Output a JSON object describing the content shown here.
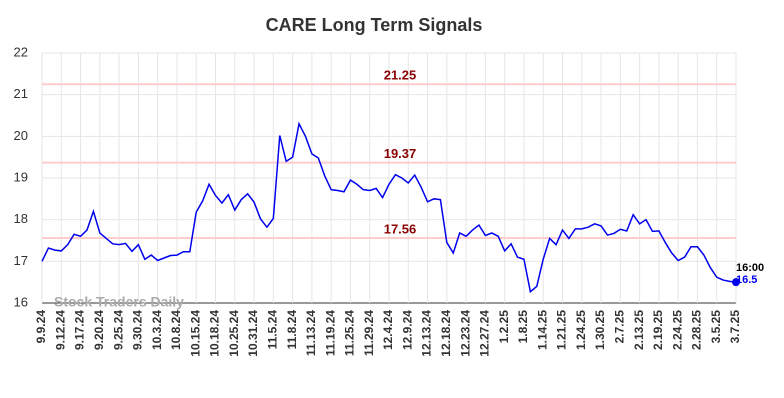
{
  "chart_data": {
    "type": "line",
    "title": "CARE Long Term Signals",
    "watermark": "Stock Traders Daily",
    "time_label": "16:00",
    "categories": [
      "9.9.24",
      null,
      null,
      "9.12.24",
      null,
      null,
      "9.17.24",
      null,
      null,
      "9.20.24",
      null,
      null,
      "9.25.24",
      null,
      null,
      "9.30.24",
      null,
      null,
      "10.3.24",
      null,
      null,
      "10.8.24",
      null,
      null,
      "10.15.24",
      null,
      null,
      "10.18.24",
      null,
      null,
      "10.25.24",
      null,
      null,
      "10.31.24",
      null,
      null,
      "11.5.24",
      null,
      null,
      "11.8.24",
      null,
      null,
      "11.13.24",
      null,
      null,
      "11.19.24",
      null,
      null,
      "11.25.24",
      null,
      null,
      "11.29.24",
      null,
      null,
      "12.4.24",
      null,
      null,
      "12.9.24",
      null,
      null,
      "12.13.24",
      null,
      null,
      "12.18.24",
      null,
      null,
      "12.23.24",
      null,
      null,
      "12.27.24",
      null,
      null,
      "1.2.25",
      null,
      null,
      "1.8.25",
      null,
      null,
      "1.14.25",
      null,
      null,
      "1.21.25",
      null,
      null,
      "1.24.25",
      null,
      null,
      "1.30.25",
      null,
      null,
      "2.7.25",
      null,
      null,
      "2.13.25",
      null,
      null,
      "2.19.25",
      null,
      null,
      "2.24.25",
      null,
      null,
      "2.28.25",
      null,
      null,
      "3.5.25",
      null,
      null,
      "3.7.25"
    ],
    "series": [
      {
        "name": "CARE",
        "color": "#0000ee",
        "values": [
          17.0,
          17.32,
          17.27,
          17.25,
          17.4,
          17.65,
          17.6,
          17.75,
          18.2,
          17.68,
          17.55,
          17.42,
          17.4,
          17.43,
          17.24,
          17.4,
          17.05,
          17.15,
          17.02,
          17.08,
          17.14,
          17.15,
          17.23,
          17.23,
          18.18,
          18.45,
          18.85,
          18.58,
          18.4,
          18.6,
          18.23,
          18.48,
          18.62,
          18.42,
          18.02,
          17.82,
          18.03,
          20.02,
          19.4,
          19.5,
          20.3,
          20.0,
          19.58,
          19.48,
          19.05,
          18.72,
          18.7,
          18.67,
          18.95,
          18.85,
          18.72,
          18.7,
          18.75,
          18.53,
          18.85,
          19.08,
          19.0,
          18.88,
          19.07,
          18.78,
          18.43,
          18.5,
          18.48,
          17.45,
          17.2,
          17.68,
          17.6,
          17.75,
          17.87,
          17.62,
          17.68,
          17.6,
          17.25,
          17.42,
          17.1,
          17.05,
          16.27,
          16.4,
          17.05,
          17.55,
          17.4,
          17.75,
          17.55,
          17.78,
          17.78,
          17.82,
          17.9,
          17.85,
          17.63,
          17.67,
          17.77,
          17.73,
          18.12,
          17.9,
          18.0,
          17.72,
          17.73,
          17.45,
          17.2,
          17.02,
          17.1,
          17.35,
          17.35,
          17.15,
          16.85,
          16.62,
          16.55,
          16.52,
          16.5
        ]
      }
    ],
    "levels": [
      21.25,
      19.37,
      17.56
    ],
    "level_color": "#ffcccc",
    "level_label_color": "#8b0000",
    "ylim": [
      16,
      22
    ],
    "yticks": [
      16,
      17,
      18,
      19,
      20,
      21,
      22
    ],
    "grid": true
  }
}
